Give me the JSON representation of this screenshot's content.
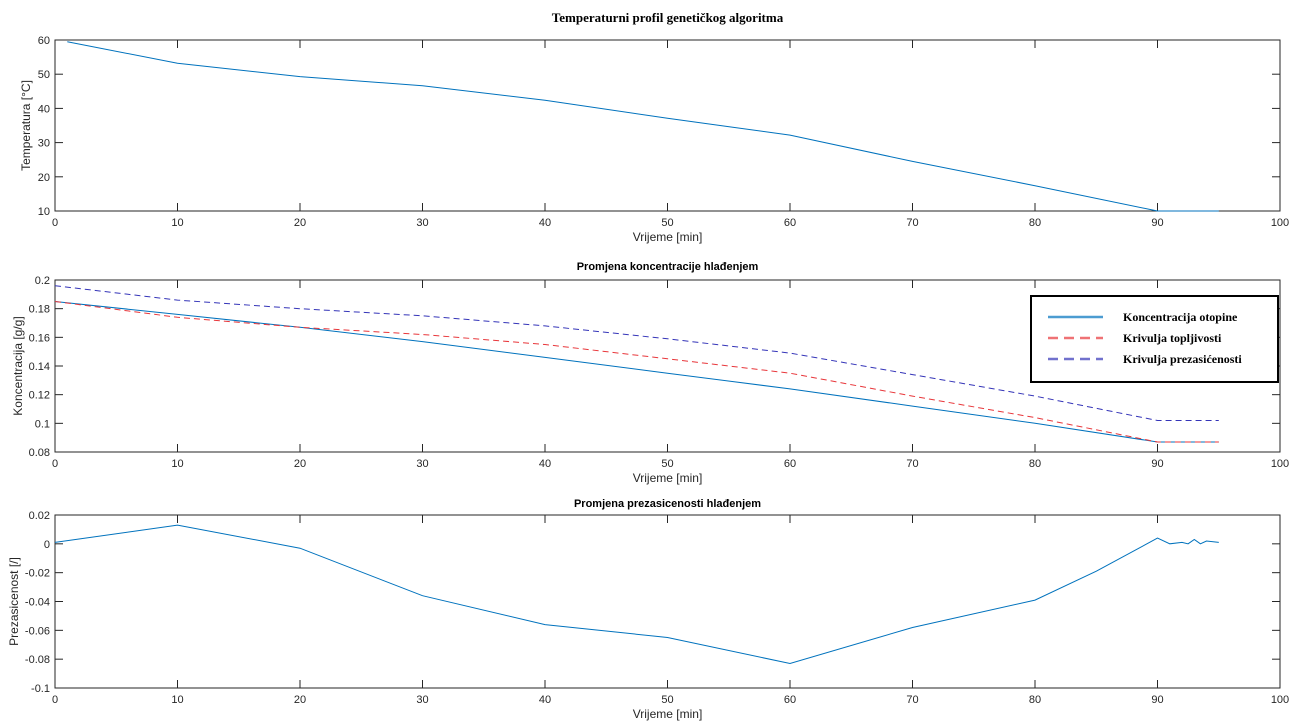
{
  "chart_data": [
    {
      "type": "line",
      "title": "Temperaturni profil genetičkog algoritma",
      "xlabel": "Vrijeme [min]",
      "ylabel": "Temperatura [°C]",
      "xlim": [
        0,
        100
      ],
      "ylim": [
        10,
        60
      ],
      "xticks": [
        "0",
        "10",
        "20",
        "30",
        "40",
        "50",
        "60",
        "70",
        "80",
        "90",
        "100"
      ],
      "yticks": [
        "10",
        "20",
        "30",
        "40",
        "50",
        "60"
      ],
      "series": [
        {
          "color": "#0072BD",
          "dash": "solid",
          "x": [
            1,
            10,
            20,
            30,
            40,
            50,
            60,
            70,
            80,
            90,
            95
          ],
          "y": [
            59.5,
            53.2,
            49.3,
            46.6,
            42.4,
            37.1,
            32.2,
            24.5,
            17.4,
            10.0,
            10.0
          ]
        }
      ]
    },
    {
      "type": "line",
      "title": "Promjena koncentracije hlađenjem",
      "xlabel": "Vrijeme [min]",
      "ylabel": "Koncentracija [g/g]",
      "xlim": [
        0,
        100
      ],
      "ylim": [
        0.08,
        0.2
      ],
      "xticks": [
        "0",
        "10",
        "20",
        "30",
        "40",
        "50",
        "60",
        "70",
        "80",
        "90",
        "100"
      ],
      "yticks": [
        "0.08",
        "0.1",
        "0.12",
        "0.14",
        "0.16",
        "0.18",
        "0.2"
      ],
      "legend": {
        "position": "right",
        "entries": [
          "Koncentracija otopine",
          "Krivulja topljivosti",
          "Krivulja prezasićenosti"
        ]
      },
      "series": [
        {
          "name": "Koncentracija otopine",
          "color": "#0072BD",
          "dash": "solid",
          "x": [
            0,
            10,
            20,
            30,
            40,
            50,
            60,
            70,
            80,
            90,
            95
          ],
          "y": [
            0.185,
            0.176,
            0.167,
            0.157,
            0.146,
            0.135,
            0.124,
            0.112,
            0.1,
            0.087,
            0.087
          ]
        },
        {
          "name": "Krivulja topljivosti",
          "color": "#E8363A",
          "dash": "dashed",
          "x": [
            0,
            10,
            20,
            30,
            40,
            50,
            60,
            70,
            80,
            90,
            95
          ],
          "y": [
            0.185,
            0.174,
            0.167,
            0.162,
            0.155,
            0.145,
            0.135,
            0.119,
            0.104,
            0.087,
            0.087
          ]
        },
        {
          "name": "Krivulja prezasićenosti",
          "color": "#3434B8",
          "dash": "dashed",
          "x": [
            0,
            10,
            20,
            30,
            40,
            50,
            60,
            70,
            80,
            90,
            95
          ],
          "y": [
            0.196,
            0.186,
            0.18,
            0.175,
            0.168,
            0.159,
            0.149,
            0.134,
            0.119,
            0.102,
            0.102
          ]
        }
      ]
    },
    {
      "type": "line",
      "title": "Promjena prezasicenosti hlađenjem",
      "xlabel": "Vrijeme [min]",
      "ylabel": "Prezasicenost [/]",
      "xlim": [
        0,
        100
      ],
      "ylim": [
        -0.1,
        0.02
      ],
      "xticks": [
        "0",
        "10",
        "20",
        "30",
        "40",
        "50",
        "60",
        "70",
        "80",
        "90",
        "100"
      ],
      "yticks": [
        "-0.1",
        "-0.08",
        "-0.06",
        "-0.04",
        "-0.02",
        "0",
        "0.02"
      ],
      "series": [
        {
          "color": "#0072BD",
          "dash": "solid",
          "x": [
            0,
            10,
            20,
            30,
            40,
            50,
            60,
            70,
            80,
            85,
            90,
            91,
            92,
            92.5,
            93,
            93.5,
            94,
            95
          ],
          "y": [
            0.001,
            0.013,
            -0.003,
            -0.036,
            -0.056,
            -0.065,
            -0.083,
            -0.058,
            -0.039,
            -0.019,
            0.004,
            0.0,
            0.001,
            0.0,
            0.003,
            0.0,
            0.002,
            0.001
          ]
        }
      ]
    }
  ]
}
